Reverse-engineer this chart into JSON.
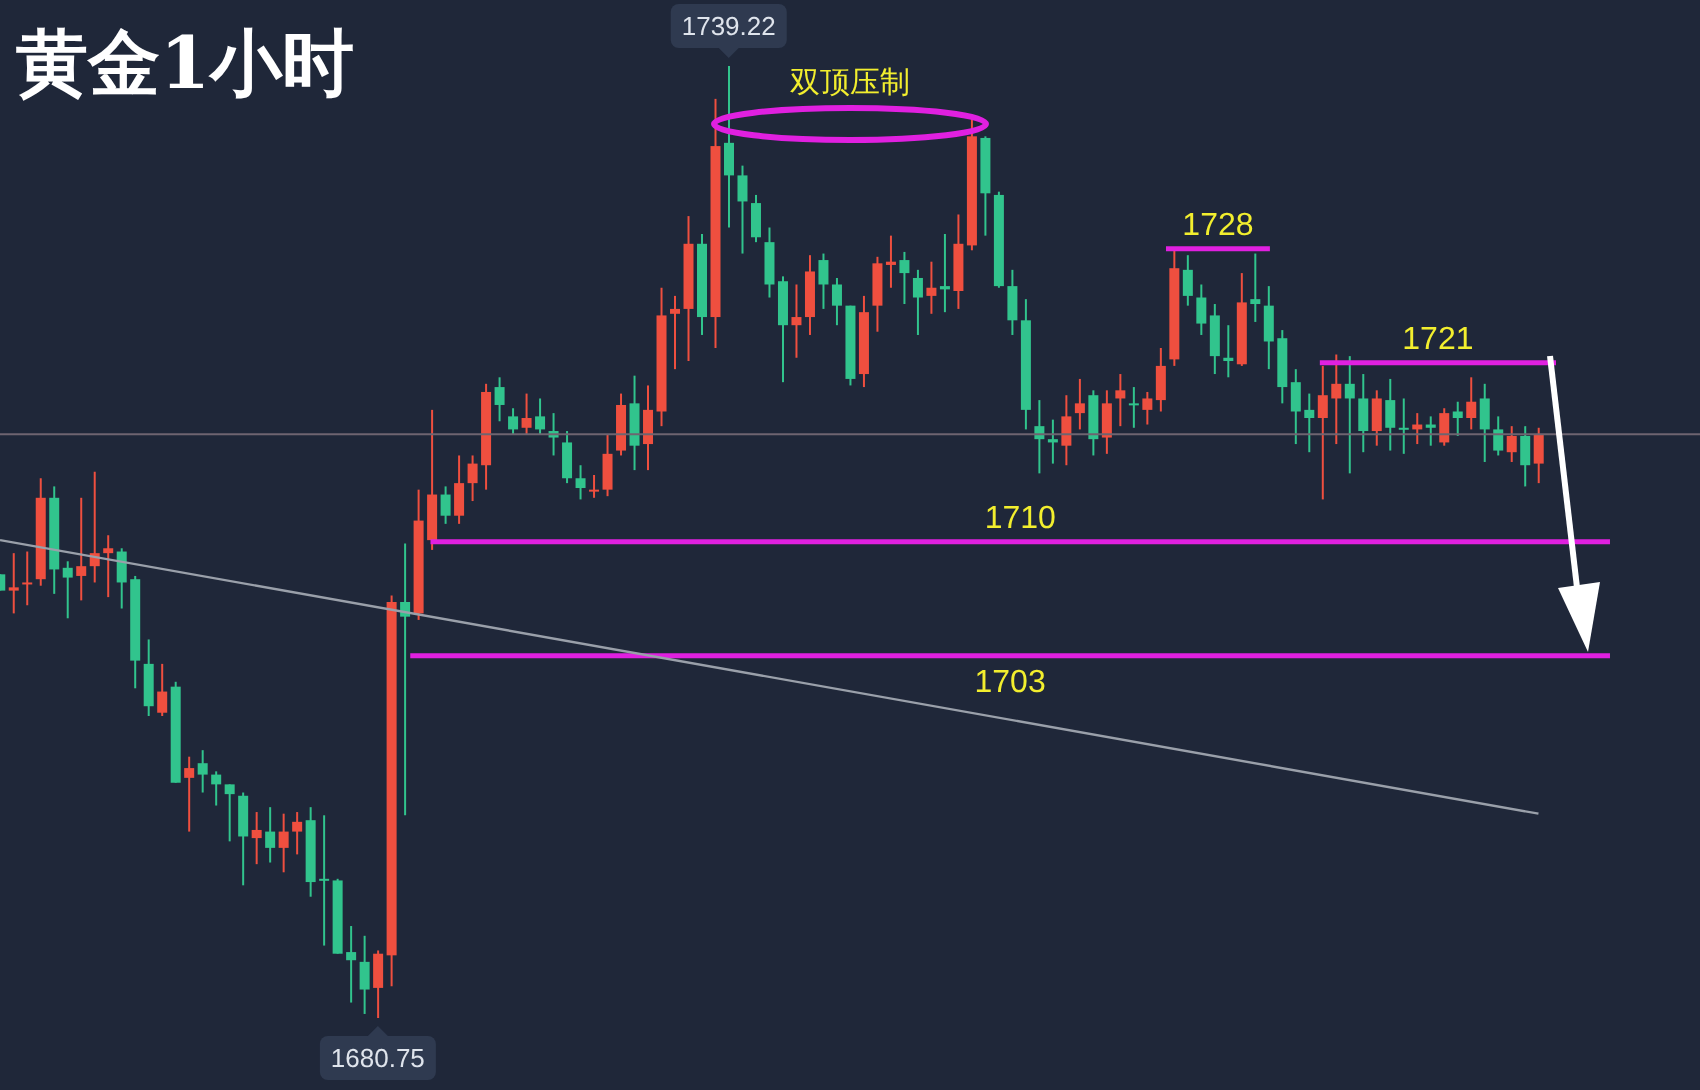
{
  "chart_data": {
    "type": "candlestick",
    "title": "黄金1小时",
    "tick_labels": false,
    "categories": [
      null,
      null,
      null,
      null,
      null,
      null,
      null,
      null,
      null,
      null,
      null,
      null,
      null,
      null,
      null,
      null,
      null,
      null,
      null,
      null,
      null,
      null,
      null,
      null,
      null,
      null,
      null,
      null,
      null,
      null,
      null,
      null,
      null,
      null,
      null,
      null,
      null,
      null,
      null,
      null,
      null,
      null,
      null,
      null,
      null,
      null,
      null,
      null,
      null,
      null,
      null,
      null,
      null,
      null,
      null,
      null,
      null,
      null,
      null,
      null,
      null,
      null,
      null,
      null,
      null,
      null,
      null,
      null,
      null,
      null,
      null,
      null,
      null,
      null,
      null,
      null,
      null,
      null,
      null,
      null,
      null,
      null,
      null,
      null,
      null,
      null,
      null,
      null,
      null,
      null,
      null,
      null,
      null,
      null,
      null,
      null,
      null,
      null,
      null,
      null,
      null,
      null,
      null,
      null,
      null,
      null,
      null,
      null,
      null,
      null,
      null,
      null,
      null,
      null,
      null
    ],
    "ohlc": [
      [
        1708.0,
        1708.0,
        1707.0,
        1707.0
      ],
      [
        1707.0,
        1709.3,
        1705.6,
        1707.2
      ],
      [
        1707.4,
        1709.4,
        1706.1,
        1707.5
      ],
      [
        1707.7,
        1713.9,
        1707.3,
        1712.7
      ],
      [
        1712.7,
        1713.4,
        1706.8,
        1708.3
      ],
      [
        1708.4,
        1708.8,
        1705.3,
        1707.8
      ],
      [
        1707.9,
        1712.7,
        1706.4,
        1708.5
      ],
      [
        1708.5,
        1714.3,
        1707.5,
        1709.3
      ],
      [
        1709.3,
        1710.4,
        1706.6,
        1709.6
      ],
      [
        1709.4,
        1709.6,
        1705.9,
        1707.5
      ],
      [
        1707.7,
        1707.9,
        1701.0,
        1702.7
      ],
      [
        1702.5,
        1704.0,
        1699.3,
        1699.9
      ],
      [
        1699.5,
        1702.5,
        1699.3,
        1700.8
      ],
      [
        1701.1,
        1701.4,
        1695.2,
        1695.2
      ],
      [
        1695.5,
        1696.8,
        1692.2,
        1696.1
      ],
      [
        1696.4,
        1697.2,
        1694.6,
        1695.7
      ],
      [
        1695.7,
        1695.9,
        1693.8,
        1695.1
      ],
      [
        1695.1,
        1695.1,
        1691.6,
        1694.5
      ],
      [
        1694.4,
        1694.6,
        1688.9,
        1691.9
      ],
      [
        1691.8,
        1693.4,
        1690.2,
        1692.3
      ],
      [
        1692.2,
        1693.7,
        1690.3,
        1691.2
      ],
      [
        1691.2,
        1693.3,
        1689.7,
        1692.2
      ],
      [
        1692.2,
        1693.4,
        1690.8,
        1692.8
      ],
      [
        1692.9,
        1693.7,
        1688.2,
        1689.1
      ],
      [
        1689.3,
        1693.2,
        1685.2,
        1689.2
      ],
      [
        1689.2,
        1689.3,
        1684.7,
        1684.7
      ],
      [
        1684.8,
        1686.4,
        1681.7,
        1684.3
      ],
      [
        1684.2,
        1685.8,
        1681.0,
        1682.5
      ],
      [
        1682.6,
        1684.9,
        1680.75,
        1684.7
      ],
      [
        1684.6,
        1706.7,
        1682.7,
        1706.3
      ],
      [
        1706.3,
        1709.9,
        1693.2,
        1705.4
      ],
      [
        1705.6,
        1713.2,
        1705.2,
        1711.3
      ],
      [
        1710.1,
        1718.1,
        1709.5,
        1712.9
      ],
      [
        1712.9,
        1713.4,
        1711.1,
        1711.6
      ],
      [
        1711.6,
        1715.3,
        1711.1,
        1713.6
      ],
      [
        1713.6,
        1715.3,
        1712.5,
        1714.8
      ],
      [
        1714.7,
        1719.7,
        1713.2,
        1719.2
      ],
      [
        1719.5,
        1720.1,
        1717.4,
        1718.4
      ],
      [
        1717.7,
        1718.2,
        1716.6,
        1716.9
      ],
      [
        1717.0,
        1719.1,
        1716.6,
        1717.6
      ],
      [
        1717.7,
        1718.8,
        1716.6,
        1716.9
      ],
      [
        1716.8,
        1717.9,
        1715.3,
        1716.4
      ],
      [
        1716.1,
        1716.8,
        1713.6,
        1713.9
      ],
      [
        1713.9,
        1714.7,
        1712.6,
        1713.3
      ],
      [
        1713.1,
        1714.1,
        1712.7,
        1713.2
      ],
      [
        1713.2,
        1716.6,
        1712.8,
        1715.4
      ],
      [
        1715.6,
        1719.1,
        1715.3,
        1718.4
      ],
      [
        1718.5,
        1720.2,
        1714.4,
        1715.9
      ],
      [
        1716.0,
        1719.6,
        1714.4,
        1718.1
      ],
      [
        1718.0,
        1725.6,
        1717.1,
        1723.9
      ],
      [
        1724.0,
        1725.1,
        1720.6,
        1724.3
      ],
      [
        1724.3,
        1730.0,
        1721.1,
        1728.3
      ],
      [
        1728.3,
        1728.9,
        1722.7,
        1723.8
      ],
      [
        1723.8,
        1737.2,
        1721.9,
        1734.3
      ],
      [
        1734.5,
        1739.22,
        1729.3,
        1732.5
      ],
      [
        1732.5,
        1733.1,
        1727.7,
        1730.9
      ],
      [
        1730.8,
        1731.3,
        1728.4,
        1728.7
      ],
      [
        1728.4,
        1729.3,
        1725.0,
        1725.8
      ],
      [
        1726.0,
        1726.3,
        1719.8,
        1723.3
      ],
      [
        1723.3,
        1725.8,
        1721.3,
        1723.8
      ],
      [
        1723.8,
        1727.6,
        1722.7,
        1726.6
      ],
      [
        1727.3,
        1727.7,
        1724.3,
        1725.8
      ],
      [
        1725.8,
        1726.2,
        1723.3,
        1724.5
      ],
      [
        1724.5,
        1724.5,
        1719.6,
        1720.0
      ],
      [
        1720.3,
        1725.1,
        1719.5,
        1724.1
      ],
      [
        1724.5,
        1727.5,
        1722.9,
        1727.1
      ],
      [
        1727.0,
        1728.8,
        1725.6,
        1727.2
      ],
      [
        1727.3,
        1727.8,
        1724.6,
        1726.5
      ],
      [
        1726.2,
        1726.7,
        1722.7,
        1725.0
      ],
      [
        1725.1,
        1727.2,
        1724.0,
        1725.6
      ],
      [
        1725.7,
        1728.9,
        1724.1,
        1725.5
      ],
      [
        1725.4,
        1730.1,
        1724.3,
        1728.3
      ],
      [
        1728.2,
        1736.2,
        1727.9,
        1734.9
      ],
      [
        1734.8,
        1734.9,
        1728.8,
        1731.4
      ],
      [
        1731.3,
        1731.5,
        1725.6,
        1725.7
      ],
      [
        1725.7,
        1726.7,
        1722.7,
        1723.6
      ],
      [
        1723.6,
        1724.9,
        1716.9,
        1718.1
      ],
      [
        1717.1,
        1718.7,
        1714.2,
        1716.3
      ],
      [
        1716.3,
        1717.5,
        1714.8,
        1716.1
      ],
      [
        1715.9,
        1719.0,
        1714.7,
        1717.7
      ],
      [
        1717.9,
        1720.0,
        1716.9,
        1718.5
      ],
      [
        1719.0,
        1719.3,
        1715.3,
        1716.3
      ],
      [
        1716.4,
        1719.3,
        1715.4,
        1718.5
      ],
      [
        1718.8,
        1720.3,
        1717.1,
        1719.3
      ],
      [
        1718.5,
        1719.5,
        1717.0,
        1718.4
      ],
      [
        1718.1,
        1719.2,
        1717.2,
        1718.8
      ],
      [
        1718.7,
        1721.9,
        1718.0,
        1720.8
      ],
      [
        1721.2,
        1727.9,
        1720.8,
        1726.8
      ],
      [
        1726.7,
        1727.6,
        1724.5,
        1725.1
      ],
      [
        1725.0,
        1725.8,
        1722.7,
        1723.4
      ],
      [
        1723.9,
        1724.6,
        1720.3,
        1721.4
      ],
      [
        1721.3,
        1723.3,
        1720.1,
        1721.1
      ],
      [
        1720.9,
        1726.5,
        1720.8,
        1724.7
      ],
      [
        1724.9,
        1727.7,
        1723.5,
        1724.6
      ],
      [
        1724.5,
        1725.7,
        1720.6,
        1722.3
      ],
      [
        1722.5,
        1723.0,
        1718.5,
        1719.5
      ],
      [
        1719.8,
        1720.6,
        1716.0,
        1718.0
      ],
      [
        1718.1,
        1719.1,
        1715.5,
        1717.6
      ],
      [
        1717.6,
        1720.8,
        1712.6,
        1719.0
      ],
      [
        1718.8,
        1721.5,
        1716.0,
        1719.7
      ],
      [
        1719.7,
        1721.4,
        1714.2,
        1718.8
      ],
      [
        1718.8,
        1720.3,
        1715.5,
        1716.8
      ],
      [
        1716.8,
        1719.3,
        1715.9,
        1718.8
      ],
      [
        1718.7,
        1720.0,
        1715.6,
        1717.0
      ],
      [
        1717.0,
        1718.8,
        1715.4,
        1716.9
      ],
      [
        1716.9,
        1717.9,
        1716.0,
        1717.2
      ],
      [
        1717.2,
        1717.7,
        1715.9,
        1717.0
      ],
      [
        1716.1,
        1718.2,
        1715.9,
        1717.9
      ],
      [
        1718.0,
        1718.6,
        1716.5,
        1717.6
      ],
      [
        1717.6,
        1720.1,
        1716.9,
        1718.6
      ],
      [
        1718.8,
        1719.7,
        1714.9,
        1716.9
      ],
      [
        1716.9,
        1717.7,
        1715.3,
        1715.6
      ],
      [
        1715.5,
        1717.1,
        1714.9,
        1716.5
      ],
      [
        1716.5,
        1717.1,
        1713.4,
        1714.7
      ],
      [
        1714.8,
        1717.0,
        1713.6,
        1716.6
      ]
    ],
    "colors": [
      "#31c48d",
      "#ef4f3f",
      "#ef4f3f",
      "#ef4f3f",
      "#31c48d",
      "#31c48d",
      "#ef4f3f",
      "#ef4f3f",
      "#ef4f3f",
      "#31c48d",
      "#31c48d",
      "#31c48d",
      "#ef4f3f",
      "#31c48d",
      "#ef4f3f",
      "#31c48d",
      "#31c48d",
      "#31c48d",
      "#31c48d",
      "#ef4f3f",
      "#31c48d",
      "#ef4f3f",
      "#ef4f3f",
      "#31c48d",
      "#31c48d",
      "#31c48d",
      "#31c48d",
      "#31c48d",
      "#ef4f3f",
      "#ef4f3f",
      "#31c48d",
      "#ef4f3f",
      "#ef4f3f",
      "#31c48d",
      "#ef4f3f",
      "#ef4f3f",
      "#ef4f3f",
      "#31c48d",
      "#31c48d",
      "#ef4f3f",
      "#31c48d",
      "#31c48d",
      "#31c48d",
      "#31c48d",
      "#ef4f3f",
      "#ef4f3f",
      "#ef4f3f",
      "#31c48d",
      "#ef4f3f",
      "#ef4f3f",
      "#ef4f3f",
      "#ef4f3f",
      "#31c48d",
      "#ef4f3f",
      "#31c48d",
      "#31c48d",
      "#31c48d",
      "#31c48d",
      "#31c48d",
      "#ef4f3f",
      "#ef4f3f",
      "#31c48d",
      "#31c48d",
      "#31c48d",
      "#ef4f3f",
      "#ef4f3f",
      "#ef4f3f",
      "#31c48d",
      "#31c48d",
      "#ef4f3f",
      "#31c48d",
      "#ef4f3f",
      "#ef4f3f",
      "#31c48d",
      "#31c48d",
      "#31c48d",
      "#31c48d",
      "#31c48d",
      "#31c48d",
      "#ef4f3f",
      "#ef4f3f",
      "#31c48d",
      "#ef4f3f",
      "#ef4f3f",
      "#31c48d",
      "#ef4f3f",
      "#ef4f3f",
      "#ef4f3f",
      "#31c48d",
      "#31c48d",
      "#31c48d",
      "#31c48d",
      "#ef4f3f",
      "#31c48d",
      "#31c48d",
      "#31c48d",
      "#31c48d",
      "#31c48d",
      "#ef4f3f",
      "#ef4f3f",
      "#31c48d",
      "#31c48d",
      "#ef4f3f",
      "#31c48d",
      "#31c48d",
      "#ef4f3f",
      "#31c48d",
      "#ef4f3f",
      "#31c48d",
      "#ef4f3f",
      "#31c48d",
      "#31c48d",
      "#ef4f3f",
      "#31c48d",
      "#ef4f3f"
    ],
    "series": [
      {
        "type": "line",
        "color": "#9aa0aa",
        "values": [
          1710.1,
          null,
          null,
          null,
          null,
          null,
          null,
          null,
          null,
          null,
          null,
          null,
          null,
          null,
          null,
          null,
          null,
          null,
          null,
          null,
          null,
          null,
          null,
          null,
          null,
          null,
          null,
          null,
          null,
          null,
          null,
          null,
          null,
          null,
          null,
          null,
          null,
          null,
          null,
          null,
          null,
          null,
          null,
          null,
          null,
          null,
          null,
          null,
          null,
          null,
          null,
          null,
          null,
          null,
          null,
          null,
          null,
          null,
          null,
          null,
          null,
          null,
          null,
          null,
          null,
          null,
          null,
          null,
          null,
          null,
          null,
          null,
          null,
          null,
          null,
          null,
          null,
          null,
          null,
          null,
          null,
          null,
          null,
          null,
          null,
          null,
          null,
          null,
          null,
          null,
          null,
          null,
          null,
          null,
          null,
          null,
          null,
          null,
          null,
          null,
          null,
          null,
          null,
          null,
          null,
          null,
          null,
          null,
          null,
          null,
          null,
          null,
          null,
          null,
          1693.3
        ]
      }
    ],
    "ref_lines": [
      {
        "axis": "y",
        "value": 1728,
        "label": "1728",
        "color": "#e020e0"
      },
      {
        "axis": "y",
        "value": 1721,
        "label": "1721",
        "color": "#e020e0"
      },
      {
        "axis": "y",
        "value": 1710,
        "label": "1710",
        "color": "#e020e0"
      },
      {
        "axis": "y",
        "value": 1703,
        "label": "1703",
        "color": "#e020e0"
      },
      {
        "axis": "y",
        "value": 1716.6,
        "color": "#6e6470"
      }
    ],
    "annotations": [
      "双顶压制",
      {
        "text": "1739.22",
        "y": 1739.22
      },
      {
        "text": "1680.75",
        "y": 1680.75
      }
    ]
  }
}
